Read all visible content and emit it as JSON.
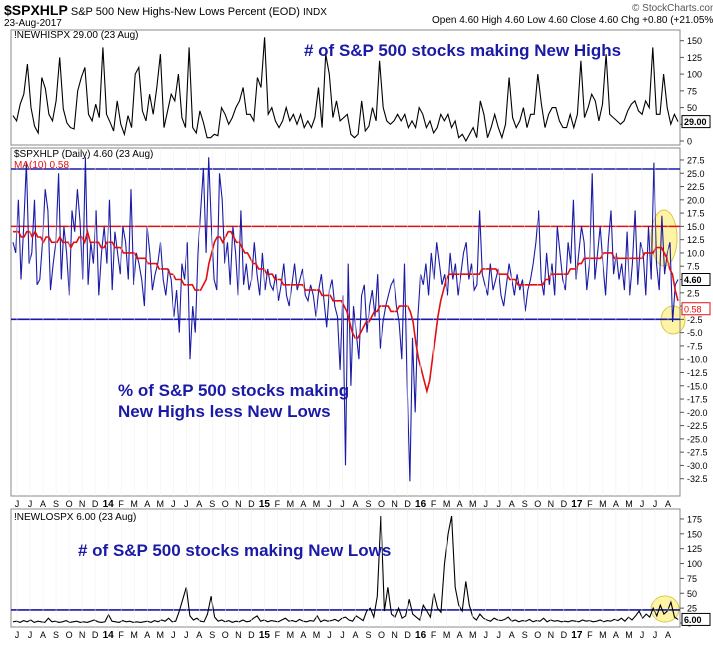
{
  "header": {
    "symbol": "$SPXHLP",
    "description": "S&P 500 New Highs-New Lows Percent (EOD)",
    "exchange": "INDX",
    "date": "23-Aug-2017",
    "quote": "Open 4.60  High 4.60  Low 4.60  Close 4.60  Chg +0.80 (+21.05%)",
    "copyright": "© StockCharts.com"
  },
  "chart_data": [
    {
      "type": "line",
      "panel": "top",
      "label": "!NEWHISPX 29.00 (23 Aug)",
      "annotation": "# of S&P 500 stocks making New Highs",
      "ylim": [
        0,
        160
      ],
      "yticks": [
        0,
        25,
        50,
        75,
        100,
        125,
        150
      ],
      "last_value_label": "29.00",
      "series": [
        {
          "color": "#000000",
          "values": [
            38,
            30,
            55,
            70,
            115,
            50,
            22,
            12,
            95,
            78,
            40,
            30,
            60,
            125,
            48,
            27,
            20,
            18,
            75,
            95,
            110,
            40,
            30,
            55,
            35,
            140,
            40,
            28,
            15,
            60,
            25,
            10,
            38,
            20,
            100,
            110,
            45,
            30,
            70,
            40,
            80,
            130,
            20,
            45,
            70,
            60,
            100,
            35,
            20,
            140,
            20,
            12,
            45,
            27,
            5,
            5,
            10,
            8,
            50,
            40,
            25,
            35,
            50,
            60,
            80,
            40,
            40,
            30,
            95,
            80,
            155,
            40,
            50,
            30,
            20,
            30,
            50,
            30,
            40,
            25,
            40,
            20,
            30,
            20,
            35,
            80,
            20,
            130,
            100,
            35,
            60,
            30,
            35,
            40,
            10,
            5,
            10,
            60,
            15,
            22,
            50,
            30,
            120,
            50,
            30,
            25,
            30,
            40,
            30,
            40,
            20,
            30,
            20,
            50,
            40,
            20,
            30,
            12,
            20,
            40,
            30,
            40,
            20,
            30,
            5,
            10,
            0,
            10,
            20,
            5,
            60,
            40,
            5,
            20,
            40,
            20,
            5,
            25,
            95,
            35,
            20,
            30,
            50,
            20,
            40,
            40,
            100,
            55,
            20,
            40,
            50,
            50,
            30,
            20,
            20,
            40,
            20,
            40,
            120,
            35,
            50,
            70,
            60,
            30,
            55,
            130,
            40,
            35,
            30,
            25,
            30,
            45,
            55,
            60,
            45,
            40,
            60,
            50,
            140,
            40,
            40,
            100,
            50,
            25,
            40,
            29
          ]
        }
      ]
    },
    {
      "type": "line",
      "panel": "middle",
      "label": "$SPXHLP (Daily) 4.60 (23 Aug)",
      "ma_label": "MA(10) 0.58",
      "annotation": "% of S&P 500 stocks making New Highs less New Lows",
      "ylim": [
        -35,
        29
      ],
      "yticks": [
        27.5,
        25.0,
        22.5,
        20.0,
        17.5,
        15.0,
        12.5,
        10.0,
        7.5,
        5.0,
        2.5,
        0.0,
        -2.5,
        -5.0,
        -7.5,
        -10.0,
        -12.5,
        -15.0,
        -17.5,
        -20.0,
        -22.5,
        -25.0,
        -27.5,
        -30.0,
        -32.5
      ],
      "hlines": [
        {
          "y": 25.8,
          "color": "#1a1aa6"
        },
        {
          "y": 15.0,
          "color": "#e01010"
        },
        {
          "y": -2.5,
          "color": "#1a1aa6"
        }
      ],
      "last_value_label": "4.60",
      "ma_value_label": "0.58",
      "series": [
        {
          "name": "$SPXHLP",
          "color": "#1a1aa6",
          "values": [
            12,
            10,
            20,
            5,
            15,
            27,
            8,
            10,
            20,
            4,
            5,
            12,
            22,
            18,
            3,
            8,
            12,
            25,
            5,
            15,
            10,
            2,
            18,
            14,
            22,
            16,
            5,
            28,
            4,
            12,
            8,
            18,
            2,
            10,
            15,
            8,
            20,
            3,
            14,
            10,
            6,
            15,
            12,
            5,
            22,
            4,
            10,
            8,
            5,
            0,
            15,
            10,
            3,
            6,
            8,
            12,
            5,
            2,
            7,
            5,
            -2,
            3,
            -5,
            8,
            5,
            12,
            -10,
            0,
            -5,
            10,
            18,
            26,
            10,
            28,
            15,
            5,
            3,
            25,
            20,
            8,
            12,
            4,
            15,
            10,
            2,
            18,
            4,
            8,
            3,
            5,
            12,
            6,
            2,
            10,
            3,
            7,
            4,
            3,
            6,
            1,
            4,
            8,
            2,
            0,
            4,
            8,
            3,
            5,
            7,
            2,
            1,
            4,
            2,
            -2,
            3,
            6,
            1,
            -4,
            3,
            5,
            0,
            -2,
            -12,
            2,
            -30,
            8,
            -15,
            0,
            -5,
            -10,
            2,
            4,
            -5,
            0,
            3,
            -2,
            6,
            -8,
            -3,
            0,
            2,
            4,
            5,
            0,
            -3,
            -10,
            8,
            -15,
            -33,
            -6,
            -20,
            -2,
            6,
            4,
            8,
            2,
            10,
            5,
            12,
            8,
            4,
            6,
            2,
            10,
            5,
            8,
            2,
            6,
            10,
            12,
            5,
            8,
            3,
            4,
            18,
            6,
            4,
            2,
            8,
            3,
            5,
            7,
            2,
            0,
            4,
            8,
            5,
            2,
            6,
            3,
            5,
            -1,
            3,
            5,
            8,
            12,
            18,
            5,
            2,
            10,
            4,
            8,
            2,
            15,
            10,
            5,
            3,
            12,
            8,
            20,
            5,
            10,
            15,
            12,
            3,
            8,
            25,
            5,
            10,
            15,
            8,
            2,
            12,
            18,
            6,
            10,
            5,
            8,
            3,
            14,
            2,
            8,
            18,
            4,
            12,
            10,
            2,
            15,
            5,
            27,
            8,
            3,
            17,
            6,
            10,
            12,
            -3,
            4,
            5
          ]
        },
        {
          "name": "MA(10)",
          "color": "#e01010",
          "values": [
            14,
            14,
            14,
            13,
            13,
            14,
            14,
            13,
            14,
            13,
            13,
            12,
            13,
            13,
            12,
            12,
            12,
            13,
            12,
            12,
            12,
            11,
            12,
            12,
            13,
            13,
            12,
            14,
            12,
            12,
            12,
            12,
            11,
            11,
            12,
            12,
            12,
            11,
            11,
            11,
            10,
            10,
            10,
            10,
            10,
            9,
            9,
            9,
            9,
            8,
            8,
            8,
            8,
            7,
            7,
            7,
            7,
            6,
            6,
            5,
            5,
            5,
            4,
            4,
            4,
            4,
            3,
            3,
            3,
            4,
            5,
            8,
            10,
            12,
            13,
            13,
            12,
            13,
            14,
            14,
            13,
            12,
            12,
            11,
            10,
            10,
            9,
            8,
            8,
            7,
            7,
            7,
            6,
            6,
            6,
            5,
            5,
            5,
            4,
            4,
            4,
            4,
            4,
            4,
            4,
            4,
            3,
            3,
            3,
            3,
            3,
            3,
            2,
            2,
            2,
            2,
            1,
            1,
            1,
            1,
            0,
            -1,
            -3,
            -5,
            -6,
            -6,
            -5,
            -4,
            -3,
            -3,
            -2,
            -1,
            -1,
            0,
            0,
            0,
            0,
            -1,
            -1,
            -1,
            0,
            0,
            0,
            0,
            -1,
            -3,
            -7,
            -10,
            -12,
            -14,
            -16,
            -14,
            -10,
            -6,
            -2,
            1,
            3,
            5,
            6,
            6,
            6,
            6,
            6,
            6,
            6,
            6,
            6,
            6,
            6,
            6,
            7,
            7,
            7,
            7,
            7,
            7,
            6,
            6,
            6,
            6,
            5,
            5,
            5,
            4,
            4,
            4,
            4,
            4,
            4,
            4,
            4,
            4,
            4,
            5,
            5,
            6,
            6,
            6,
            6,
            6,
            6,
            6,
            7,
            7,
            7,
            8,
            8,
            9,
            9,
            9,
            9,
            9,
            9,
            9,
            10,
            10,
            10,
            10,
            9,
            9,
            9,
            9,
            9,
            9,
            9,
            9,
            9,
            9,
            9,
            10,
            10,
            10,
            10,
            11,
            11,
            11,
            10,
            9,
            7,
            6,
            3,
            1
          ]
        }
      ]
    },
    {
      "type": "line",
      "panel": "bottom",
      "label": "!NEWLOSPX 6.00 (23 Aug)",
      "annotation": "# of S&P 500 stocks making New Lows",
      "ylim": [
        0,
        185
      ],
      "yticks": [
        0,
        25,
        50,
        75,
        100,
        125,
        150,
        175
      ],
      "hlines": [
        {
          "y": 22,
          "color": "#1a1aa6"
        }
      ],
      "last_value_label": "6.00",
      "series": [
        {
          "color": "#000000",
          "values": [
            2,
            3,
            1,
            4,
            2,
            5,
            1,
            3,
            2,
            1,
            8,
            2,
            3,
            1,
            2,
            4,
            1,
            2,
            3,
            1,
            2,
            1,
            3,
            5,
            2,
            1,
            2,
            14,
            3,
            2,
            1,
            4,
            2,
            3,
            1,
            2,
            1,
            2,
            3,
            1,
            4,
            2,
            5,
            3,
            8,
            2,
            3,
            20,
            40,
            60,
            12,
            5,
            8,
            3,
            2,
            15,
            45,
            10,
            3,
            5,
            2,
            4,
            1,
            3,
            2,
            5,
            2,
            3,
            8,
            12,
            3,
            5,
            2,
            4,
            3,
            2,
            5,
            8,
            3,
            4,
            2,
            6,
            3,
            2,
            4,
            3,
            12,
            2,
            5,
            3,
            4,
            6,
            3,
            8,
            10,
            5,
            3,
            12,
            8,
            4,
            20,
            25,
            10,
            45,
            180,
            20,
            60,
            15,
            10,
            25,
            8,
            12,
            40,
            15,
            10,
            5,
            30,
            20,
            10,
            50,
            25,
            18,
            100,
            150,
            180,
            60,
            30,
            20,
            70,
            30,
            10,
            5,
            15,
            8,
            5,
            3,
            8,
            5,
            4,
            6,
            10,
            3,
            5,
            2,
            4,
            3,
            6,
            2,
            4,
            3,
            8,
            2,
            5,
            3,
            4,
            2,
            3,
            2,
            4,
            3,
            2,
            5,
            3,
            4,
            2,
            3,
            5,
            2,
            4,
            3,
            6,
            4,
            8,
            3,
            10,
            5,
            12,
            20,
            8,
            15,
            10,
            25,
            12,
            30,
            15,
            20,
            35,
            10,
            6
          ]
        }
      ]
    }
  ],
  "x_axis_labels": [
    "J",
    "J",
    "A",
    "S",
    "O",
    "N",
    "D",
    "14",
    "F",
    "M",
    "A",
    "M",
    "J",
    "J",
    "A",
    "S",
    "O",
    "N",
    "D",
    "15",
    "F",
    "M",
    "A",
    "M",
    "J",
    "J",
    "A",
    "S",
    "O",
    "N",
    "D",
    "16",
    "F",
    "M",
    "A",
    "M",
    "J",
    "J",
    "A",
    "S",
    "O",
    "N",
    "D",
    "17",
    "F",
    "M",
    "A",
    "M",
    "J",
    "J",
    "A"
  ],
  "highlights": [
    {
      "panel": "middle",
      "date": "Jul 2017",
      "shape": "ellipse",
      "color": "#fff07a"
    },
    {
      "panel": "middle",
      "date": "Aug 2017",
      "shape": "circle",
      "color": "#fff07a"
    },
    {
      "panel": "bottom",
      "date": "Aug 2017",
      "shape": "circle",
      "color": "#fff07a"
    }
  ]
}
